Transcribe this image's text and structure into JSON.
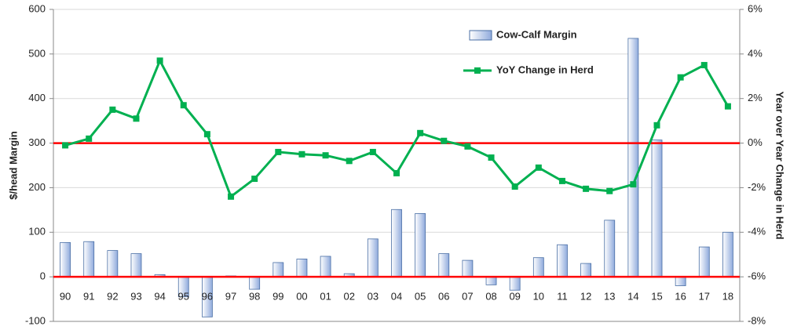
{
  "chart_data": {
    "type": "bar_line",
    "categories": [
      "90",
      "91",
      "92",
      "93",
      "94",
      "95",
      "96",
      "97",
      "98",
      "99",
      "00",
      "01",
      "02",
      "03",
      "04",
      "05",
      "06",
      "07",
      "08",
      "09",
      "10",
      "11",
      "12",
      "13",
      "14",
      "15",
      "16",
      "17",
      "18"
    ],
    "series": [
      {
        "name": "Cow-Calf Margin",
        "type": "bar",
        "color": "#8faadc",
        "values": [
          77,
          79,
          59,
          52,
          5,
          -45,
          -90,
          2,
          -28,
          32,
          40,
          46,
          7,
          85,
          151,
          142,
          52,
          37,
          -18,
          -30,
          43,
          72,
          30,
          127,
          535,
          307,
          -20,
          67,
          100
        ]
      },
      {
        "name": "YoY Change in Herd",
        "type": "line",
        "axis": "y2",
        "color": "#00b050",
        "values": [
          -0.1,
          0.2,
          1.5,
          1.1,
          3.7,
          1.7,
          0.4,
          -2.4,
          -1.6,
          -0.4,
          -0.5,
          -0.55,
          -0.8,
          -0.4,
          -1.35,
          0.45,
          0.1,
          -0.15,
          -0.65,
          -1.95,
          -1.1,
          -1.7,
          -2.05,
          -2.15,
          -1.85,
          0.8,
          2.95,
          3.5,
          1.65
        ]
      }
    ],
    "ylabel": "$/head Margin",
    "y2label": "Year over Year Change in Herd",
    "ylim": [
      -100,
      600
    ],
    "yticks": [
      -100,
      0,
      100,
      200,
      300,
      400,
      500,
      600
    ],
    "y2lim": [
      -8,
      6
    ],
    "y2ticks": [
      {
        "value": -8,
        "label": "-8%"
      },
      {
        "value": -6,
        "label": "-6%"
      },
      {
        "value": -4,
        "label": "-4%"
      },
      {
        "value": -2,
        "label": "-2%"
      },
      {
        "value": 0,
        "label": "0%"
      },
      {
        "value": 2,
        "label": "2%"
      },
      {
        "value": 4,
        "label": "4%"
      },
      {
        "value": 6,
        "label": "6%"
      }
    ],
    "grid": true,
    "zero_line_color": "#ff0000",
    "legend": "top-right"
  }
}
